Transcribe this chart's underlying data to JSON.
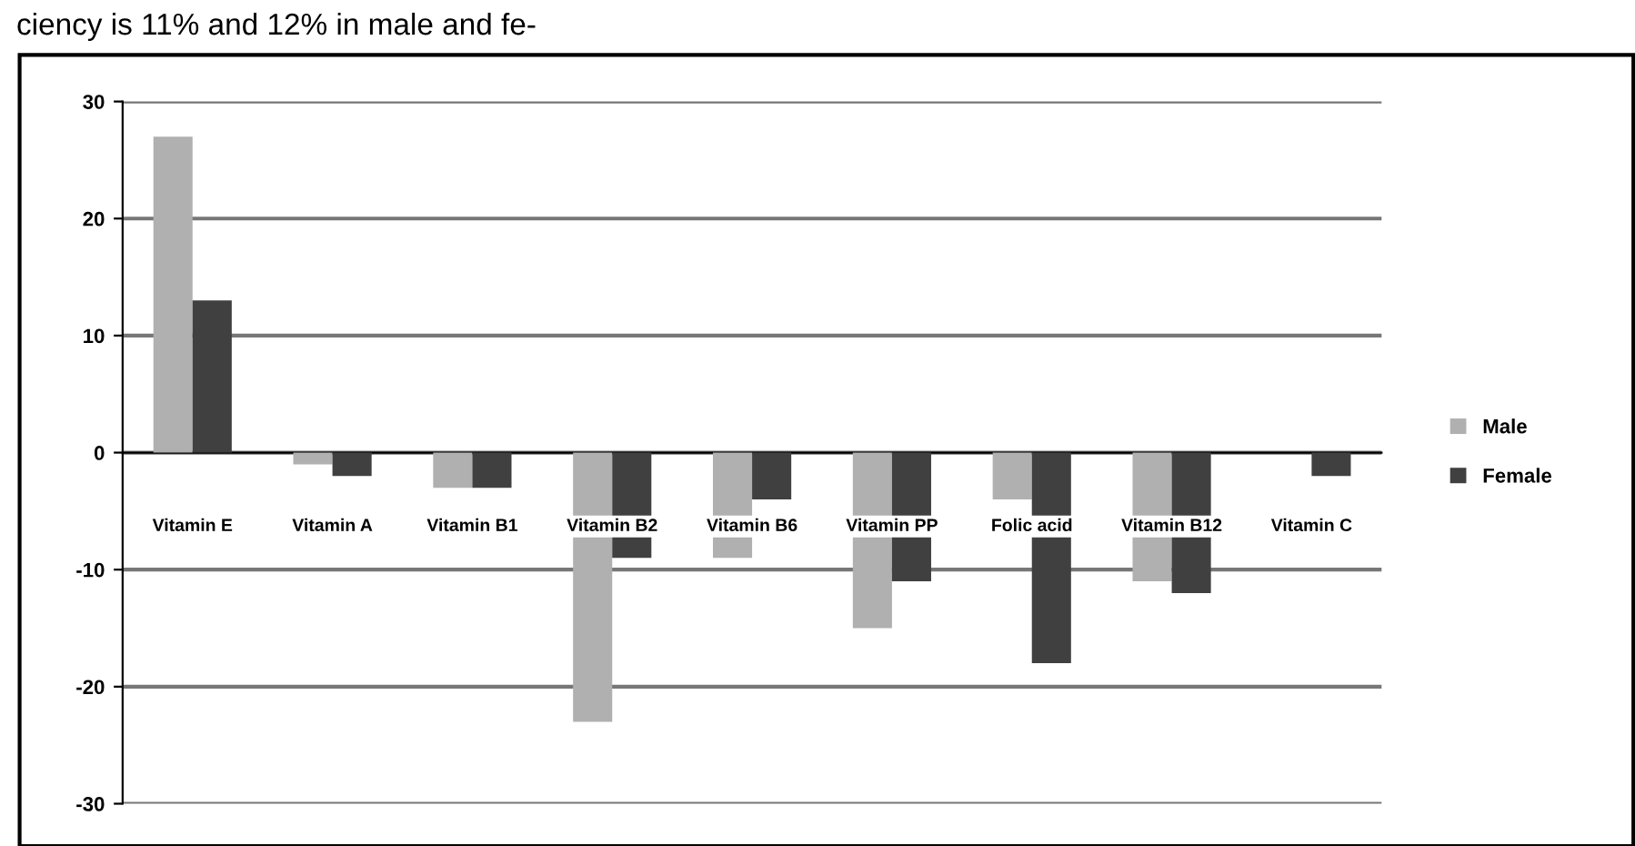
{
  "chart_data": {
    "type": "bar",
    "categories": [
      "Vitamin E",
      "Vitamin A",
      "Vitamin B1",
      "Vitamin B2",
      "Vitamin B6",
      "Vitamin PP",
      "Folic acid",
      "Vitamin B12",
      "Vitamin C"
    ],
    "series": [
      {
        "name": "Male",
        "color": "#b0b0b0",
        "values": [
          27,
          -1,
          -3,
          -23,
          -9,
          -15,
          -4,
          -11,
          0
        ]
      },
      {
        "name": "Female",
        "color": "#404040",
        "values": [
          13,
          -2,
          -3,
          -9,
          -4,
          -11,
          -18,
          -12,
          -2
        ]
      }
    ],
    "ylim": [
      -30,
      30
    ],
    "yticks": [
      -30,
      -20,
      -10,
      0,
      10,
      20,
      30
    ],
    "grid": "y",
    "legend": "right",
    "annotations": [
      "ciency is 11% and 12% in male and fe-"
    ]
  }
}
